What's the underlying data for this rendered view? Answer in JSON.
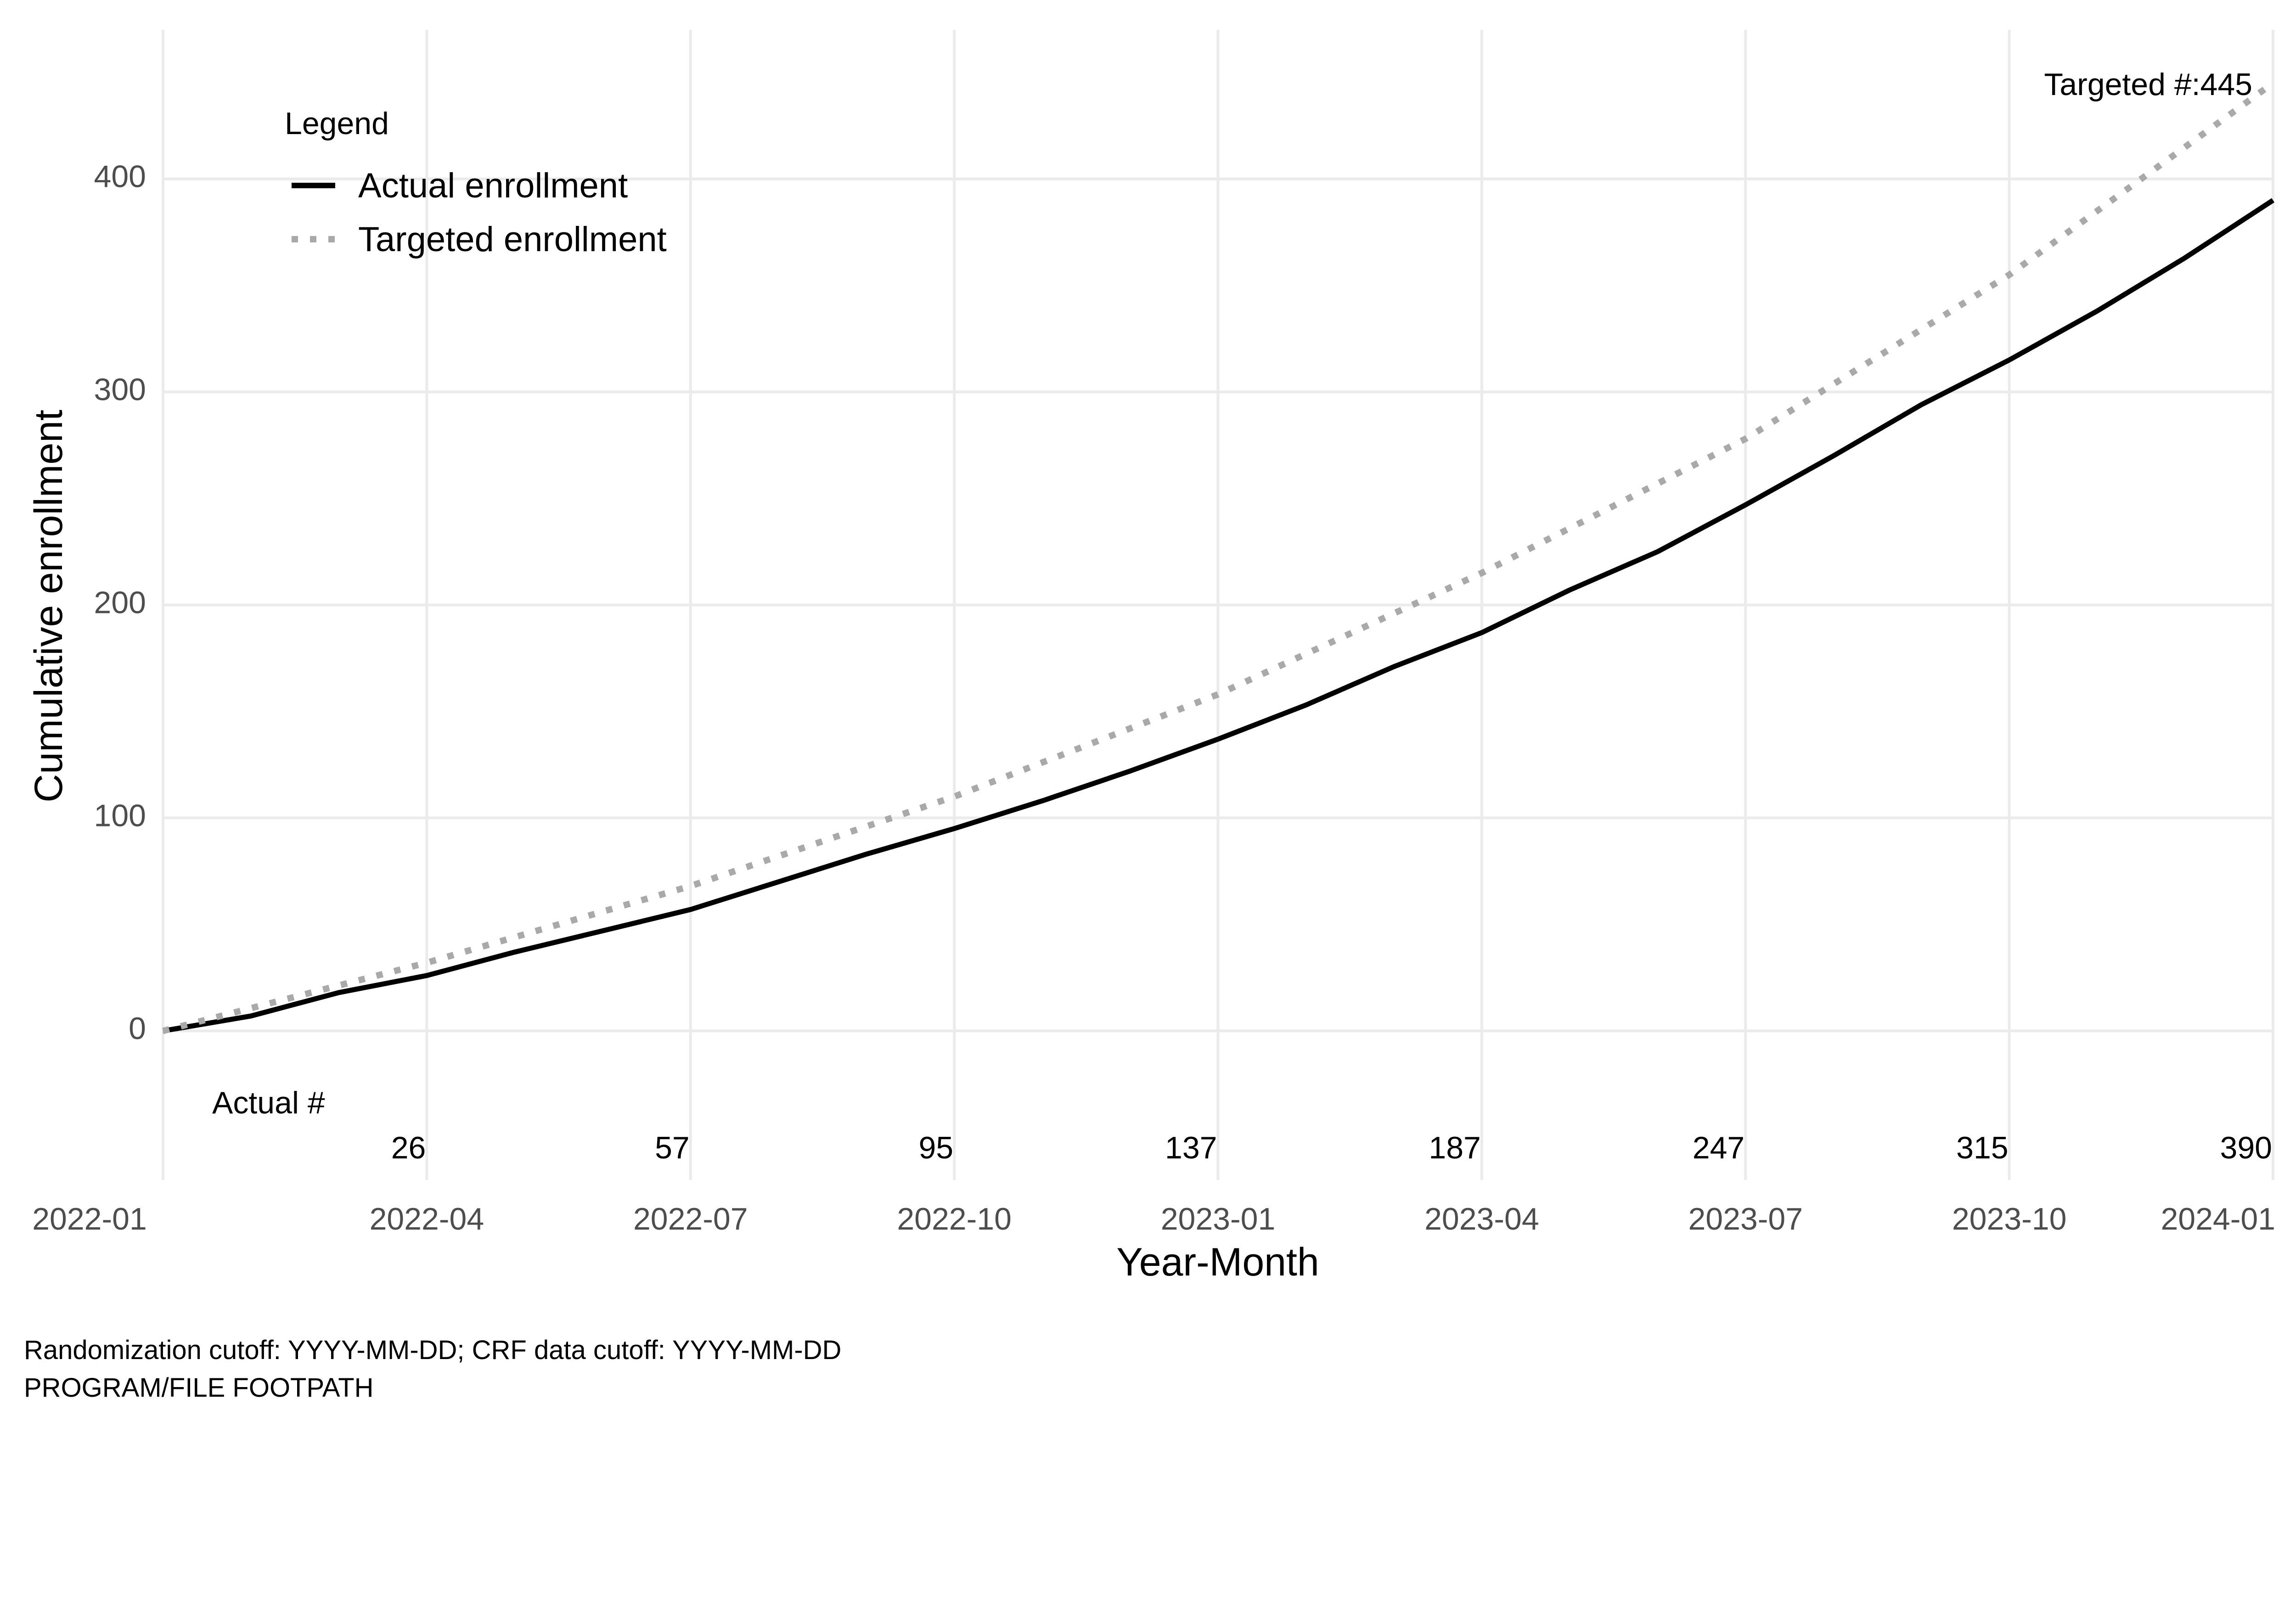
{
  "chart_data": {
    "type": "line",
    "xlabel": "Year-Month",
    "ylabel": "Cumulative enrollment",
    "xlim": [
      "2022-01",
      "2024-01"
    ],
    "ylim": [
      -70,
      470
    ],
    "x_ticks": [
      "2022-01",
      "2022-04",
      "2022-07",
      "2022-10",
      "2023-01",
      "2023-04",
      "2023-07",
      "2023-10",
      "2024-01"
    ],
    "y_ticks": [
      0,
      100,
      200,
      300,
      400
    ],
    "grid": true,
    "legend": {
      "title": "Legend",
      "position": "top-left",
      "entries": [
        "Actual enrollment",
        "Targeted enrollment"
      ]
    },
    "series": [
      {
        "name": "Actual enrollment",
        "color": "#000000",
        "style": "solid",
        "x": [
          "2022-01",
          "2022-02",
          "2022-03",
          "2022-04",
          "2022-05",
          "2022-06",
          "2022-07",
          "2022-08",
          "2022-09",
          "2022-10",
          "2022-11",
          "2022-12",
          "2023-01",
          "2023-02",
          "2023-03",
          "2023-04",
          "2023-05",
          "2023-06",
          "2023-07",
          "2023-08",
          "2023-09",
          "2023-10",
          "2023-11",
          "2023-12",
          "2024-01"
        ],
        "y": [
          0,
          7,
          18,
          26,
          37,
          47,
          57,
          70,
          83,
          95,
          108,
          122,
          137,
          153,
          171,
          187,
          207,
          225,
          247,
          270,
          294,
          315,
          338,
          363,
          390
        ]
      },
      {
        "name": "Targeted enrollment",
        "color": "#a9a9a9",
        "style": "dotted",
        "x": [
          "2022-01",
          "2022-04",
          "2022-07",
          "2022-10",
          "2023-01",
          "2023-04",
          "2023-07",
          "2023-10",
          "2024-01"
        ],
        "y": [
          0,
          32,
          68,
          110,
          158,
          215,
          278,
          355,
          445
        ]
      }
    ],
    "actual_counts": {
      "label": "Actual #",
      "x": [
        "2022-04",
        "2022-07",
        "2022-10",
        "2023-01",
        "2023-04",
        "2023-07",
        "2023-10",
        "2024-01"
      ],
      "values": [
        "26",
        "57",
        "95",
        "137",
        "187",
        "247",
        "315",
        "390"
      ]
    },
    "target_annotation": "Targeted #:445"
  },
  "captions": [
    "Randomization cutoff: YYYY-MM-DD; CRF data cutoff: YYYY-MM-DD",
    "PROGRAM/FILE FOOTPATH"
  ]
}
